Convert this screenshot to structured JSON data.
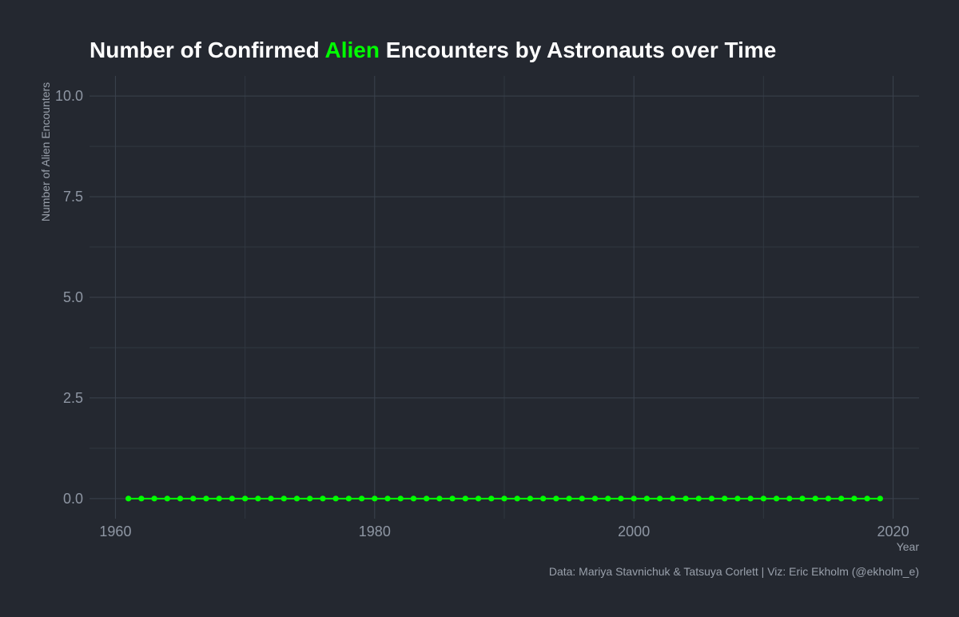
{
  "colors": {
    "background": "#242830",
    "grid_major": "#3b424d",
    "grid_minor": "#303741",
    "tick_text": "#8e96a3",
    "axis_title": "#99a0ab",
    "title_text": "#ffffff",
    "accent": "#00ff00",
    "caption": "#99a0ab"
  },
  "chart_data": {
    "type": "line",
    "title": {
      "prefix": "Number of Confirmed ",
      "highlight": "Alien",
      "suffix": " Encounters by Astronauts over Time"
    },
    "xlabel": "Year",
    "ylabel": "Number of Alien Encounters",
    "caption": "Data: Mariya Stavnichuk & Tatsuya Corlett | Viz: Eric Ekholm (@ekholm_e)",
    "xlim": [
      1958,
      2022
    ],
    "ylim": [
      -0.5,
      10.5
    ],
    "x_ticks": [
      1960,
      1980,
      2000,
      2020
    ],
    "y_ticks": [
      0.0,
      2.5,
      5.0,
      7.5,
      10.0
    ],
    "y_tick_labels": [
      "0.0",
      "2.5",
      "5.0",
      "7.5",
      "10.0"
    ],
    "grid": true,
    "legend": "none",
    "series": [
      {
        "color": "#00ff00",
        "x": [
          1961,
          1962,
          1963,
          1964,
          1965,
          1966,
          1967,
          1968,
          1969,
          1970,
          1971,
          1972,
          1973,
          1974,
          1975,
          1976,
          1977,
          1978,
          1979,
          1980,
          1981,
          1982,
          1983,
          1984,
          1985,
          1986,
          1987,
          1988,
          1989,
          1990,
          1991,
          1992,
          1993,
          1994,
          1995,
          1996,
          1997,
          1998,
          1999,
          2000,
          2001,
          2002,
          2003,
          2004,
          2005,
          2006,
          2007,
          2008,
          2009,
          2010,
          2011,
          2012,
          2013,
          2014,
          2015,
          2016,
          2017,
          2018,
          2019
        ],
        "values": [
          0,
          0,
          0,
          0,
          0,
          0,
          0,
          0,
          0,
          0,
          0,
          0,
          0,
          0,
          0,
          0,
          0,
          0,
          0,
          0,
          0,
          0,
          0,
          0,
          0,
          0,
          0,
          0,
          0,
          0,
          0,
          0,
          0,
          0,
          0,
          0,
          0,
          0,
          0,
          0,
          0,
          0,
          0,
          0,
          0,
          0,
          0,
          0,
          0,
          0,
          0,
          0,
          0,
          0,
          0,
          0,
          0,
          0,
          0
        ]
      }
    ]
  }
}
